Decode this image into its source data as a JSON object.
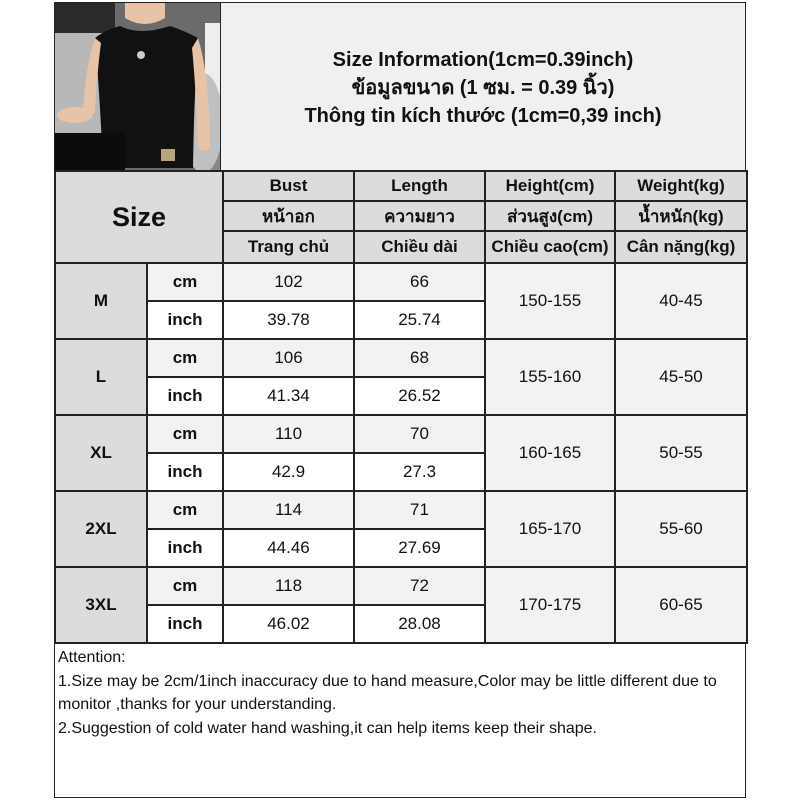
{
  "header": {
    "lines": [
      "Size Information(1cm=0.39inch)",
      "ข้อมูลขนาด (1 ซม. = 0.39 นิ้ว)",
      "Thông tin kích thước (1cm=0,39 inch)"
    ]
  },
  "photo": {
    "icon": "model-wearing-black-sleeveless-tank-top"
  },
  "table": {
    "size_label": "Size",
    "columns": [
      {
        "en": "Bust",
        "th": "หน้าอก",
        "vi": "Trang chủ"
      },
      {
        "en": "Length",
        "th": "ความยาว",
        "vi": "Chiều dài"
      },
      {
        "en": "Height(cm)",
        "th": "ส่วนสูง(cm)",
        "vi": "Chiều cao(cm)"
      },
      {
        "en": "Weight(kg)",
        "th": "น้ำหนัก(kg)",
        "vi": "Cân nặng(kg)"
      }
    ],
    "units": {
      "cm": "cm",
      "inch": "inch"
    },
    "rows": [
      {
        "size": "M",
        "bust_cm": "102",
        "length_cm": "66",
        "bust_in": "39.78",
        "length_in": "25.74",
        "height": "150-155",
        "weight": "40-45"
      },
      {
        "size": "L",
        "bust_cm": "106",
        "length_cm": "68",
        "bust_in": "41.34",
        "length_in": "26.52",
        "height": "155-160",
        "weight": "45-50"
      },
      {
        "size": "XL",
        "bust_cm": "110",
        "length_cm": "70",
        "bust_in": "42.9",
        "length_in": "27.3",
        "height": "160-165",
        "weight": "50-55"
      },
      {
        "size": "2XL",
        "bust_cm": "114",
        "length_cm": "71",
        "bust_in": "44.46",
        "length_in": "27.69",
        "height": "165-170",
        "weight": "55-60"
      },
      {
        "size": "3XL",
        "bust_cm": "118",
        "length_cm": "72",
        "bust_in": "46.02",
        "length_in": "28.08",
        "height": "170-175",
        "weight": "60-65"
      }
    ]
  },
  "notes": {
    "heading": "Attention:",
    "items": [
      "1.Size may be 2cm/1inch inaccuracy due to hand measure,Color may be little different due to monitor ,thanks for your understanding.",
      "2.Suggestion of cold water hand washing,it can help items keep their shape."
    ]
  }
}
